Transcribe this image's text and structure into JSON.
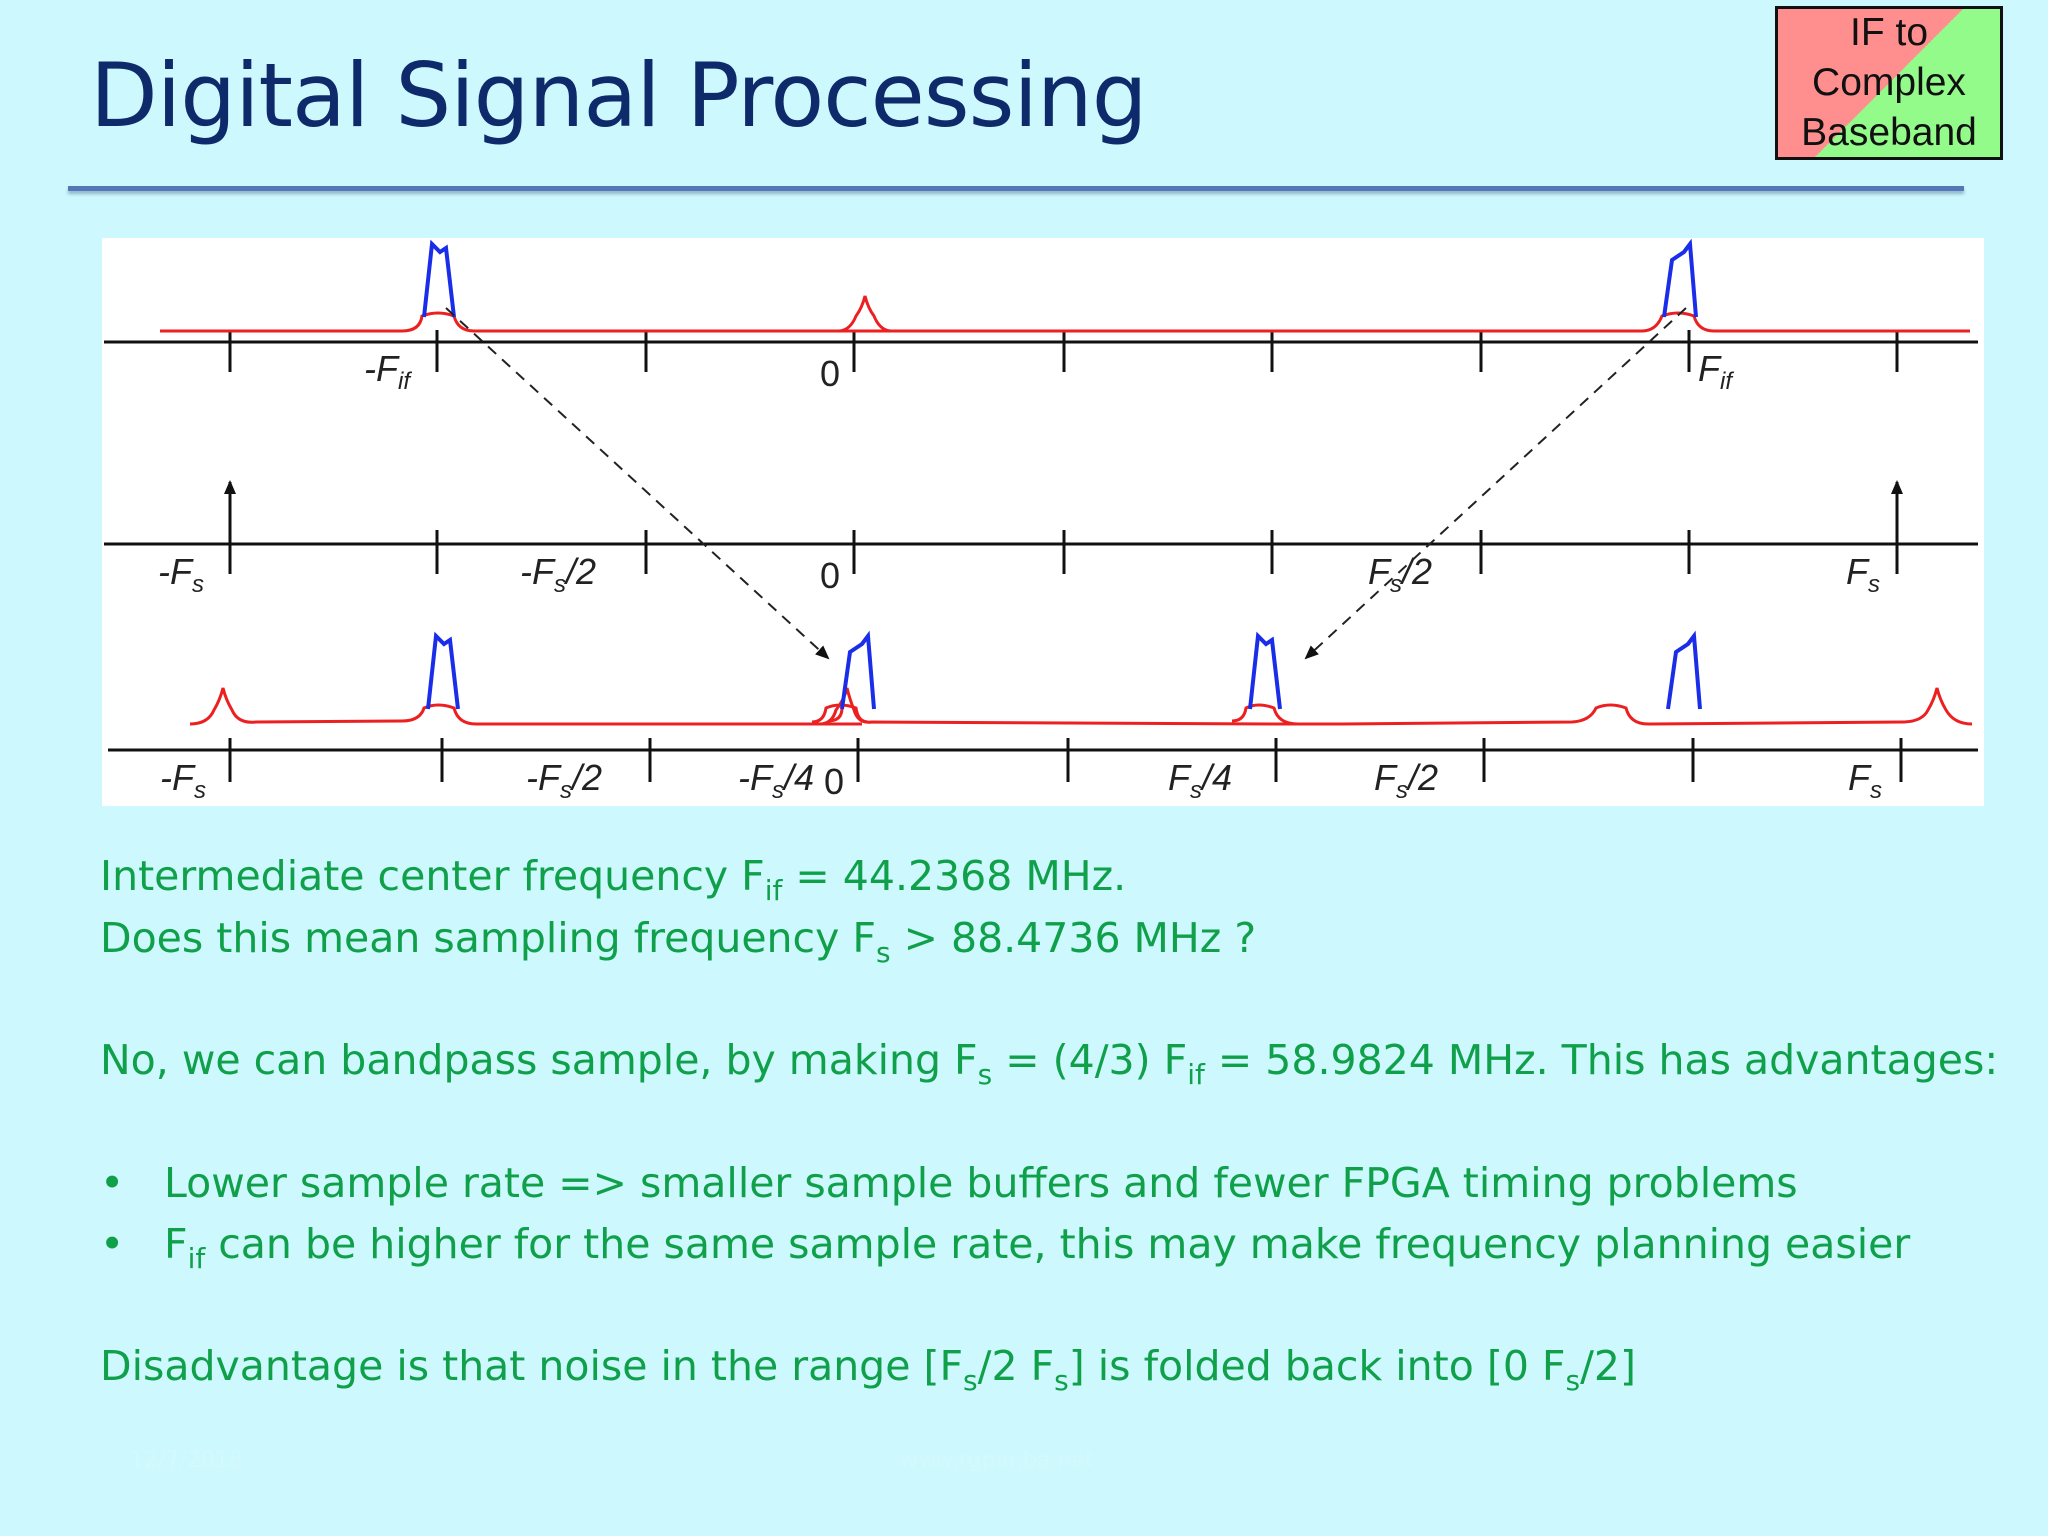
{
  "title": "Digital Signal Processing",
  "badge": {
    "lines": [
      "IF to",
      "Complex",
      "Baseband"
    ]
  },
  "figure": {
    "row1_labels": {
      "neg_fif": "-F",
      "neg_fif_sub": "if",
      "zero": "0",
      "fif": "F",
      "fif_sub": "if"
    },
    "row2_labels": {
      "neg_fs": "-F",
      "neg_fs_sub": "s",
      "neg_fs2": "-F",
      "neg_fs2_sub": "s",
      "neg_fs2_tail": "/2",
      "zero": "0",
      "fs2": "F",
      "fs2_sub": "s",
      "fs2_tail": "/2",
      "fs": "F",
      "fs_sub": "s"
    },
    "row3_labels": {
      "neg_fs": "-F",
      "neg_fs_sub": "s",
      "neg_fs2": "-F",
      "neg_fs2_sub": "s",
      "neg_fs2_tail": "/2",
      "neg_fs4": "-F",
      "neg_fs4_sub": "s",
      "neg_fs4_tail": "/4",
      "zero": "0",
      "fs4": "F",
      "fs4_sub": "s",
      "fs4_tail": "/4",
      "fs2": "F",
      "fs2_sub": "s",
      "fs2_tail": "/2",
      "fs": "F",
      "fs_sub": "s"
    }
  },
  "text": {
    "line1_a": "Intermediate center frequency F",
    "line1_sub": "if",
    "line1_b": " = 44.2368 MHz.",
    "line2_a": "Does this mean sampling frequency F",
    "line2_sub": "s",
    "line2_b": " > 88.4736 MHz ?",
    "line3_a": "No, we can bandpass sample, by making F",
    "line3_sub1": "s",
    "line3_b": " = (4/3) F",
    "line3_sub2": "if",
    "line3_c": " = 58.9824 MHz.  This has advantages:",
    "bullet_symbol": "•",
    "bullet1": "Lower sample rate => smaller sample buffers and fewer FPGA timing problems",
    "bullet2_a": "F",
    "bullet2_sub": "if",
    "bullet2_b": "  can be higher for the same sample rate, this may make frequency planning easier",
    "line4_a": "Disadvantage is that noise in the range [F",
    "line4_sub1": "s",
    "line4_b": "/2 F",
    "line4_sub2": "s",
    "line4_c": "] is folded back into [0 F",
    "line4_sub3": "s",
    "line4_d": "/2]"
  },
  "footer": {
    "left": "12/7/2018",
    "center": "www.rgpar.ba.net"
  },
  "colors": {
    "background": "#ccf8fe",
    "title": "#0f2a6b",
    "body_text": "#10a04a",
    "red_trace": "#ec2020",
    "blue_trace": "#1a2de8"
  }
}
